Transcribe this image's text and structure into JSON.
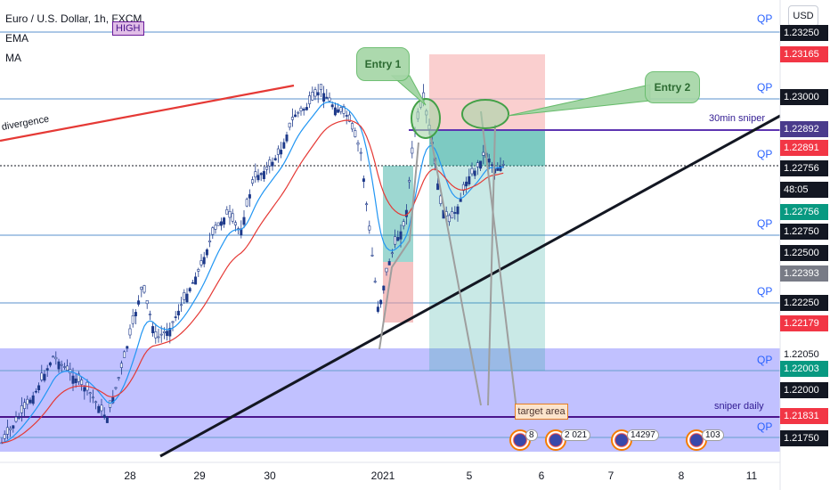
{
  "legend": {
    "symbol": "Euro / U.S. Dollar, 1h, FXCM",
    "high_badge": "HIGH",
    "ema": "EMA",
    "ma": "MA"
  },
  "currency_button": "USD",
  "price_axis": [
    {
      "label": "1.23250",
      "bg": "#131722",
      "fg": "#ffffff",
      "pos": 37
    },
    {
      "label": "1.23165",
      "bg": "#f23645",
      "fg": "#ffffff",
      "pos": 61
    },
    {
      "label": "1.23000",
      "bg": "#131722",
      "fg": "#ffffff",
      "pos": 109
    },
    {
      "label": "1.22892",
      "bg": "#4a3b8c",
      "fg": "#ffffff",
      "pos": 145
    },
    {
      "label": "1.22891",
      "bg": "#f23645",
      "fg": "#ffffff",
      "pos": 166
    },
    {
      "label": "1.22756",
      "bg": "#131722",
      "fg": "#ffffff",
      "pos": 189
    },
    {
      "label": "48:05",
      "bg": "#131722",
      "fg": "#ffffff",
      "pos": 213
    },
    {
      "label": "1.22756",
      "bg": "#089981",
      "fg": "#ffffff",
      "pos": 238
    },
    {
      "label": "1.22750",
      "bg": "#131722",
      "fg": "#ffffff",
      "pos": 260
    },
    {
      "label": "1.22500",
      "bg": "#131722",
      "fg": "#ffffff",
      "pos": 284
    },
    {
      "label": "1.22393",
      "bg": "#787b86",
      "fg": "#ffffff",
      "pos": 307
    },
    {
      "label": "1.22250",
      "bg": "#131722",
      "fg": "#ffffff",
      "pos": 340
    },
    {
      "label": "1.22179",
      "bg": "#f23645",
      "fg": "#ffffff",
      "pos": 363
    },
    {
      "label": "1.22050",
      "bg": "transparent",
      "fg": "#131722",
      "pos": 398
    },
    {
      "label": "1.22003",
      "bg": "#089981",
      "fg": "#ffffff",
      "pos": 414
    },
    {
      "label": "1.22000",
      "bg": "#131722",
      "fg": "#ffffff",
      "pos": 438
    },
    {
      "label": "1.21831",
      "bg": "#f23645",
      "fg": "#ffffff",
      "pos": 467
    },
    {
      "label": "1.21750",
      "bg": "#131722",
      "fg": "#ffffff",
      "pos": 492
    }
  ],
  "qp_label": "QP",
  "labels": {
    "divergence": "divergence",
    "sniper_30min": "30min sniper",
    "sniper_daily": "sniper daily",
    "target_area": "target area",
    "entry1": "Entry 1",
    "entry2": "Entry 2"
  },
  "x_axis": [
    "28",
    "29",
    "30",
    "2021",
    "5",
    "6",
    "7",
    "8",
    "11"
  ],
  "events": [
    {
      "count": "8"
    },
    {
      "count": "2  021"
    },
    {
      "count": "14297"
    },
    {
      "count": "103"
    }
  ],
  "colors": {
    "bull": "#1e3a8a",
    "bear": "#1e3a8a",
    "ema": "#2196f3",
    "ma": "#e53935",
    "zone": "#3d3dff",
    "trendline": "#131722"
  }
}
